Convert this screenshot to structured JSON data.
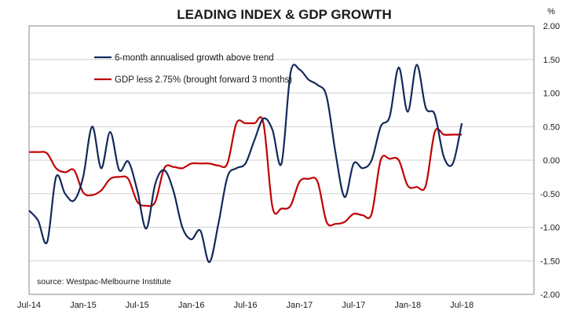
{
  "chart_data": {
    "type": "line",
    "title": "LEADING INDEX & GDP GROWTH",
    "unit_label": "%",
    "source": "source: Westpac-Melbourne Institute",
    "x_ticks": [
      "Jul-14",
      "Jan-15",
      "Jul-15",
      "Jan-16",
      "Jul-16",
      "Jan-17",
      "Jul-17",
      "Jan-18",
      "Jul-18"
    ],
    "xlim": [
      "2014-07",
      "2019-03"
    ],
    "ylim": [
      -2.0,
      2.0
    ],
    "y_ticks": [
      "2.00",
      "1.50",
      "1.00",
      "0.50",
      "0.00",
      "-0.50",
      "-1.00",
      "-1.50",
      "-2.00"
    ],
    "y_axis_side": "right",
    "grid": "horizontal",
    "legend_placement": "top-left",
    "series": [
      {
        "name": "6-month annualised growth above trend",
        "color": "#14285a",
        "points": [
          [
            "2014-07",
            -0.75
          ],
          [
            "2014-08",
            -0.9
          ],
          [
            "2014-09",
            -1.22
          ],
          [
            "2014-10",
            -0.25
          ],
          [
            "2014-11",
            -0.5
          ],
          [
            "2014-12",
            -0.6
          ],
          [
            "2015-01",
            -0.25
          ],
          [
            "2015-02",
            0.5
          ],
          [
            "2015-03",
            -0.12
          ],
          [
            "2015-04",
            0.42
          ],
          [
            "2015-05",
            -0.15
          ],
          [
            "2015-06",
            -0.02
          ],
          [
            "2015-07",
            -0.45
          ],
          [
            "2015-08",
            -1.02
          ],
          [
            "2015-09",
            -0.35
          ],
          [
            "2015-10",
            -0.15
          ],
          [
            "2015-11",
            -0.45
          ],
          [
            "2015-12",
            -1.0
          ],
          [
            "2016-01",
            -1.18
          ],
          [
            "2016-02",
            -1.05
          ],
          [
            "2016-03",
            -1.52
          ],
          [
            "2016-04",
            -0.95
          ],
          [
            "2016-05",
            -0.25
          ],
          [
            "2016-06",
            -0.12
          ],
          [
            "2016-07",
            -0.05
          ],
          [
            "2016-08",
            0.3
          ],
          [
            "2016-09",
            0.62
          ],
          [
            "2016-10",
            0.45
          ],
          [
            "2016-11",
            -0.05
          ],
          [
            "2016-12",
            1.3
          ],
          [
            "2017-01",
            1.35
          ],
          [
            "2017-02",
            1.2
          ],
          [
            "2017-03",
            1.12
          ],
          [
            "2017-04",
            0.95
          ],
          [
            "2017-05",
            0.1
          ],
          [
            "2017-06",
            -0.55
          ],
          [
            "2017-07",
            -0.05
          ],
          [
            "2017-08",
            -0.12
          ],
          [
            "2017-09",
            0.0
          ],
          [
            "2017-10",
            0.5
          ],
          [
            "2017-11",
            0.65
          ],
          [
            "2017-12",
            1.38
          ],
          [
            "2018-01",
            0.72
          ],
          [
            "2018-02",
            1.42
          ],
          [
            "2018-03",
            0.78
          ],
          [
            "2018-04",
            0.68
          ],
          [
            "2018-05",
            0.05
          ],
          [
            "2018-06",
            -0.05
          ],
          [
            "2018-07",
            0.55
          ]
        ]
      },
      {
        "name": "GDP less 2.75% (brought forward 3 months)",
        "color": "#c00000",
        "points": [
          [
            "2014-07",
            0.12
          ],
          [
            "2014-08",
            0.12
          ],
          [
            "2014-09",
            0.1
          ],
          [
            "2014-10",
            -0.12
          ],
          [
            "2014-11",
            -0.18
          ],
          [
            "2014-12",
            -0.15
          ],
          [
            "2015-01",
            -0.48
          ],
          [
            "2015-02",
            -0.52
          ],
          [
            "2015-03",
            -0.45
          ],
          [
            "2015-04",
            -0.28
          ],
          [
            "2015-05",
            -0.25
          ],
          [
            "2015-06",
            -0.28
          ],
          [
            "2015-07",
            -0.62
          ],
          [
            "2015-08",
            -0.68
          ],
          [
            "2015-09",
            -0.62
          ],
          [
            "2015-10",
            -0.12
          ],
          [
            "2015-11",
            -0.1
          ],
          [
            "2015-12",
            -0.12
          ],
          [
            "2016-01",
            -0.05
          ],
          [
            "2016-02",
            -0.05
          ],
          [
            "2016-03",
            -0.05
          ],
          [
            "2016-04",
            -0.08
          ],
          [
            "2016-05",
            -0.05
          ],
          [
            "2016-06",
            0.55
          ],
          [
            "2016-07",
            0.55
          ],
          [
            "2016-08",
            0.55
          ],
          [
            "2016-09",
            0.55
          ],
          [
            "2016-10",
            -0.7
          ],
          [
            "2016-11",
            -0.72
          ],
          [
            "2016-12",
            -0.68
          ],
          [
            "2017-01",
            -0.32
          ],
          [
            "2017-02",
            -0.28
          ],
          [
            "2017-03",
            -0.32
          ],
          [
            "2017-04",
            -0.92
          ],
          [
            "2017-05",
            -0.95
          ],
          [
            "2017-06",
            -0.92
          ],
          [
            "2017-07",
            -0.8
          ],
          [
            "2017-08",
            -0.82
          ],
          [
            "2017-09",
            -0.8
          ],
          [
            "2017-10",
            0.0
          ],
          [
            "2017-11",
            0.02
          ],
          [
            "2017-12",
            0.0
          ],
          [
            "2018-01",
            -0.38
          ],
          [
            "2018-02",
            -0.4
          ],
          [
            "2018-03",
            -0.38
          ],
          [
            "2018-04",
            0.42
          ],
          [
            "2018-05",
            0.38
          ],
          [
            "2018-06",
            0.38
          ],
          [
            "2018-07",
            0.38
          ]
        ]
      }
    ]
  }
}
